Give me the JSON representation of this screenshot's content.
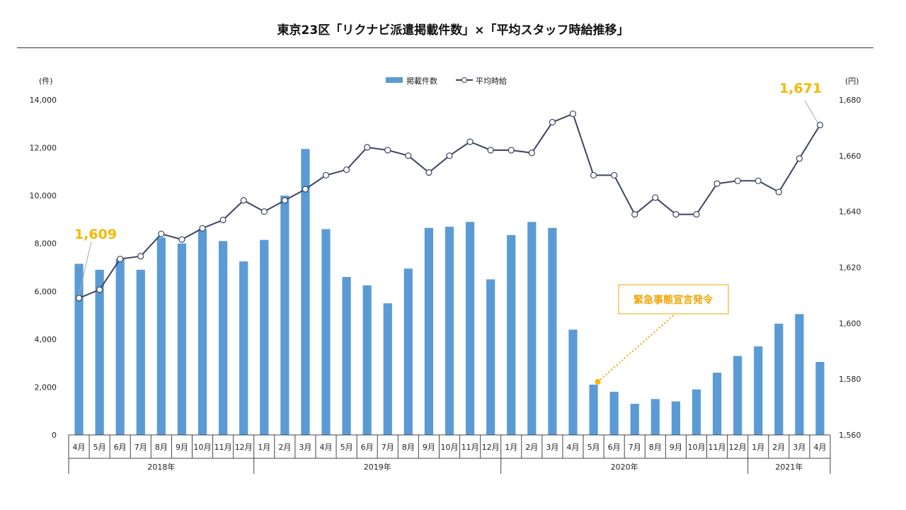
{
  "title": "東京23区「リクナビ派遣掲載件数」×「平均スタッフ時給推移」",
  "left_unit": "(件)",
  "right_unit": "(円)",
  "legend": {
    "bar": "掲載件数",
    "line": "平均時給"
  },
  "callouts": {
    "first": "1,609",
    "last": "1,671"
  },
  "annotation": "緊急事態宣言発令",
  "colors": {
    "bar": "#5B9BD5",
    "line": "#3A4660",
    "highlight": "#F5B800",
    "annotation": "#F0A500"
  },
  "chart_data": {
    "type": "bar+line",
    "title": "東京23区「リクナビ派遣掲載件数」×「平均スタッフ時給推移」",
    "categories": [
      "4月",
      "5月",
      "6月",
      "7月",
      "8月",
      "9月",
      "10月",
      "11月",
      "12月",
      "1月",
      "2月",
      "3月",
      "4月",
      "5月",
      "6月",
      "7月",
      "8月",
      "9月",
      "10月",
      "11月",
      "12月",
      "1月",
      "2月",
      "3月",
      "4月",
      "5月",
      "6月",
      "7月",
      "8月",
      "9月",
      "10月",
      "11月",
      "12月",
      "1月",
      "2月",
      "3月",
      "4月"
    ],
    "year_groups": [
      {
        "label": "2018年",
        "count": 9
      },
      {
        "label": "2019年",
        "count": 12
      },
      {
        "label": "2020年",
        "count": 12
      },
      {
        "label": "2021年",
        "count": 4
      }
    ],
    "series": [
      {
        "name": "掲載件数",
        "type": "bar",
        "axis": "left",
        "values": [
          7150,
          6900,
          7350,
          6900,
          8250,
          8000,
          8600,
          8100,
          7250,
          8150,
          10000,
          11950,
          8600,
          6600,
          6250,
          5500,
          6950,
          8650,
          8700,
          8900,
          6500,
          8350,
          8900,
          8650,
          4400,
          2100,
          1800,
          1300,
          1500,
          1400,
          1900,
          2600,
          3300,
          3700,
          4650,
          5050,
          3050
        ]
      },
      {
        "name": "平均時給",
        "type": "line",
        "axis": "right",
        "values": [
          1609,
          1612,
          1623,
          1624,
          1632,
          1630,
          1634,
          1637,
          1644,
          1640,
          1644,
          1648,
          1653,
          1655,
          1663,
          1662,
          1660,
          1654,
          1660,
          1665,
          1662,
          1662,
          1661,
          1672,
          1675,
          1653,
          1653,
          1639,
          1645,
          1639,
          1639,
          1650,
          1651,
          1651,
          1647,
          1659,
          1671
        ]
      }
    ],
    "yleft": {
      "min": 0,
      "max": 14000,
      "ticks": [
        "0",
        "2,000",
        "4,000",
        "6,000",
        "8,000",
        "10,000",
        "12,000",
        "14,000"
      ]
    },
    "yright": {
      "min": 1560,
      "max": 1680,
      "ticks": [
        "1,560",
        "1,580",
        "1,600",
        "1,620",
        "1,640",
        "1,660",
        "1,680"
      ]
    },
    "legend_position": "top-center",
    "grid": false
  }
}
